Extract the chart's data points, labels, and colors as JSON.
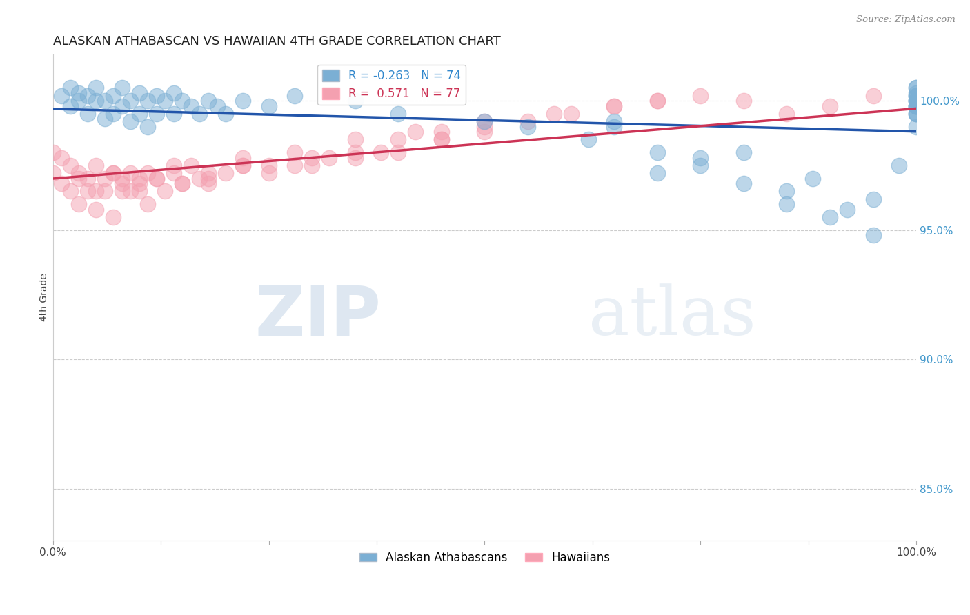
{
  "title": "ALASKAN ATHABASCAN VS HAWAIIAN 4TH GRADE CORRELATION CHART",
  "source": "Source: ZipAtlas.com",
  "ylabel": "4th Grade",
  "y_ticks": [
    85.0,
    90.0,
    95.0,
    100.0
  ],
  "y_min": 83.0,
  "y_max": 101.8,
  "x_min": 0.0,
  "x_max": 100.0,
  "blue_label": "Alaskan Athabascans",
  "pink_label": "Hawaiians",
  "blue_R": -0.263,
  "blue_N": 74,
  "pink_R": 0.571,
  "pink_N": 77,
  "blue_color": "#7BAFD4",
  "pink_color": "#F4A0B0",
  "blue_line_color": "#2255AA",
  "pink_line_color": "#CC3355",
  "blue_scatter_x": [
    1,
    2,
    2,
    3,
    3,
    4,
    4,
    5,
    5,
    6,
    6,
    7,
    7,
    8,
    8,
    9,
    9,
    10,
    10,
    11,
    11,
    12,
    12,
    13,
    14,
    14,
    15,
    16,
    17,
    18,
    19,
    20,
    22,
    25,
    28,
    35,
    40,
    50,
    55,
    62,
    65,
    70,
    75,
    80,
    85,
    88,
    92,
    95,
    98,
    65,
    70,
    75,
    80,
    85,
    90,
    95,
    100,
    100,
    100,
    100,
    100,
    100,
    100,
    100,
    100,
    100,
    100,
    100,
    100,
    100,
    100,
    100,
    100,
    100
  ],
  "blue_scatter_y": [
    100.2,
    99.8,
    100.5,
    100.0,
    100.3,
    99.5,
    100.2,
    100.0,
    100.5,
    99.3,
    100.0,
    99.5,
    100.2,
    99.8,
    100.5,
    99.2,
    100.0,
    99.5,
    100.3,
    99.0,
    100.0,
    99.5,
    100.2,
    100.0,
    99.5,
    100.3,
    100.0,
    99.8,
    99.5,
    100.0,
    99.8,
    99.5,
    100.0,
    99.8,
    100.2,
    100.0,
    99.5,
    99.2,
    99.0,
    98.5,
    99.2,
    97.2,
    97.8,
    98.0,
    96.5,
    97.0,
    95.8,
    96.2,
    97.5,
    99.0,
    98.0,
    97.5,
    96.8,
    96.0,
    95.5,
    94.8,
    100.2,
    99.8,
    100.5,
    99.5,
    100.0,
    100.3,
    99.8,
    100.0,
    99.5,
    100.2,
    99.0,
    100.5,
    99.8,
    100.0,
    99.5,
    100.2,
    99.8,
    100.0
  ],
  "pink_scatter_x": [
    0,
    0,
    1,
    1,
    2,
    2,
    3,
    3,
    4,
    4,
    5,
    5,
    6,
    6,
    7,
    7,
    8,
    8,
    9,
    9,
    10,
    10,
    11,
    11,
    12,
    13,
    14,
    15,
    16,
    17,
    18,
    20,
    22,
    25,
    28,
    32,
    38,
    45,
    30,
    35,
    40,
    45,
    50,
    18,
    22,
    8,
    12,
    15,
    3,
    5,
    7,
    10,
    14,
    18,
    22,
    28,
    35,
    42,
    50,
    58,
    65,
    70,
    25,
    30,
    35,
    40,
    45,
    50,
    55,
    60,
    65,
    70,
    75,
    80,
    85,
    90,
    95
  ],
  "pink_scatter_y": [
    98.0,
    97.2,
    97.8,
    96.8,
    97.5,
    96.5,
    97.2,
    96.0,
    97.0,
    96.5,
    97.5,
    95.8,
    97.0,
    96.5,
    97.2,
    95.5,
    97.0,
    96.8,
    96.5,
    97.2,
    97.0,
    96.5,
    97.2,
    96.0,
    97.0,
    96.5,
    97.2,
    96.8,
    97.5,
    97.0,
    96.8,
    97.2,
    97.5,
    97.2,
    97.5,
    97.8,
    98.0,
    98.5,
    97.5,
    97.8,
    98.0,
    98.5,
    98.8,
    97.0,
    97.5,
    96.5,
    97.0,
    96.8,
    97.0,
    96.5,
    97.2,
    96.8,
    97.5,
    97.2,
    97.8,
    98.0,
    98.5,
    98.8,
    99.2,
    99.5,
    99.8,
    100.0,
    97.5,
    97.8,
    98.0,
    98.5,
    98.8,
    99.0,
    99.2,
    99.5,
    99.8,
    100.0,
    100.2,
    100.0,
    99.5,
    99.8,
    100.2
  ],
  "watermark_zip": "ZIP",
  "watermark_atlas": "atlas",
  "background_color": "#FFFFFF",
  "grid_color": "#CCCCCC"
}
